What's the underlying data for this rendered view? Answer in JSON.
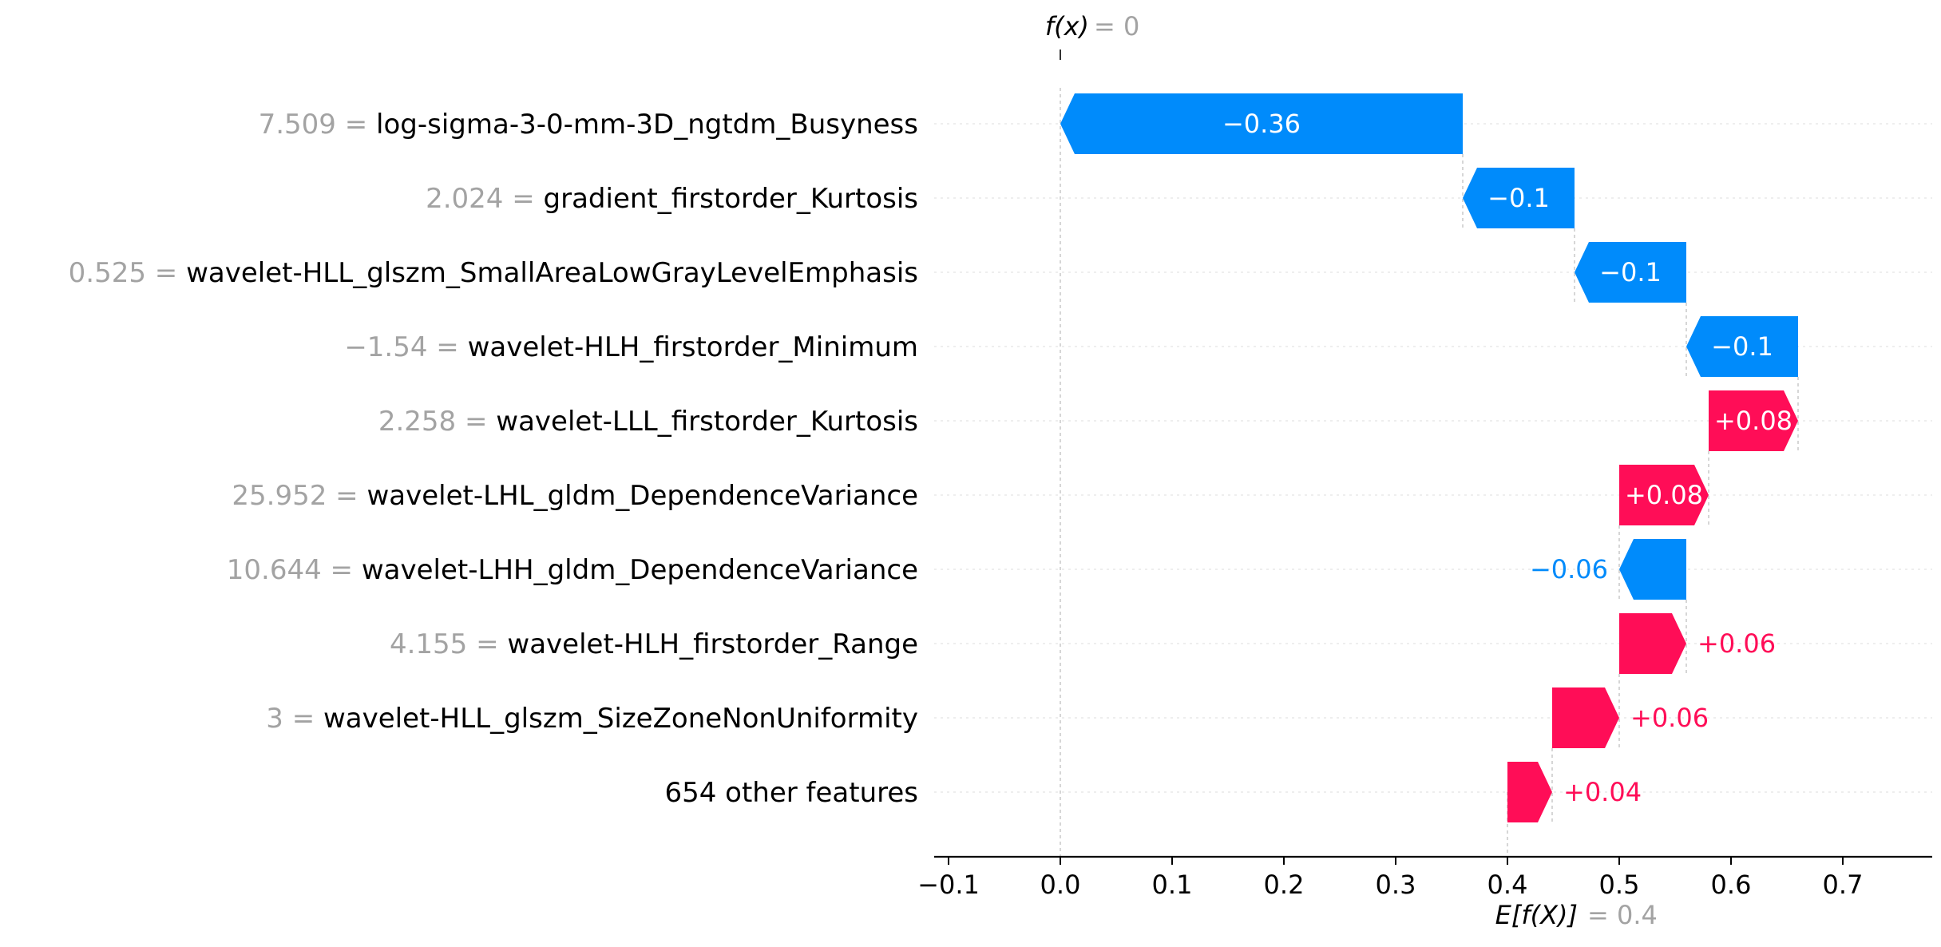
{
  "chart_data": {
    "type": "bar",
    "xlim": [
      -0.11,
      0.78
    ],
    "x_ticks": [
      "−0.1",
      "0.0",
      "0.1",
      "0.2",
      "0.3",
      "0.4",
      "0.5",
      "0.6",
      "0.7"
    ],
    "x_tick_values": [
      -0.1,
      0.0,
      0.1,
      0.2,
      0.3,
      0.4,
      0.5,
      0.6,
      0.7
    ],
    "fx_label": "f(x)",
    "fx_value": "= 0",
    "fx": 0.0,
    "ex_label": "E[f(X)]",
    "ex_value": "= 0.4",
    "base_value": 0.4,
    "colors": {
      "positive": "#ff0d57",
      "negative": "#008bfb",
      "value_text": "#a3a3a3"
    },
    "features": [
      {
        "value": "7.509 =",
        "name": "log-sigma-3-0-mm-3D_ngtdm_Busyness",
        "contribution": -0.36,
        "label": "−0.36",
        "start": 0.36,
        "end": 0.0,
        "label_inside": true
      },
      {
        "value": "2.024 =",
        "name": "gradient_firstorder_Kurtosis",
        "contribution": -0.1,
        "label": "−0.1",
        "start": 0.46,
        "end": 0.36,
        "label_inside": true
      },
      {
        "value": "0.525 =",
        "name": "wavelet-HLL_glszm_SmallAreaLowGrayLevelEmphasis",
        "contribution": -0.1,
        "label": "−0.1",
        "start": 0.56,
        "end": 0.46,
        "label_inside": true
      },
      {
        "value": "−1.54 =",
        "name": "wavelet-HLH_firstorder_Minimum",
        "contribution": -0.1,
        "label": "−0.1",
        "start": 0.66,
        "end": 0.56,
        "label_inside": true
      },
      {
        "value": "2.258 =",
        "name": "wavelet-LLL_firstorder_Kurtosis",
        "contribution": 0.08,
        "label": "+0.08",
        "start": 0.58,
        "end": 0.66,
        "label_inside": true
      },
      {
        "value": "25.952 =",
        "name": "wavelet-LHL_gldm_DependenceVariance",
        "contribution": 0.08,
        "label": "+0.08",
        "start": 0.5,
        "end": 0.58,
        "label_inside": true
      },
      {
        "value": "10.644 =",
        "name": "wavelet-LHH_gldm_DependenceVariance",
        "contribution": -0.06,
        "label": "−0.06",
        "start": 0.56,
        "end": 0.5,
        "label_inside": false
      },
      {
        "value": "4.155 =",
        "name": "wavelet-HLH_firstorder_Range",
        "contribution": 0.06,
        "label": "+0.06",
        "start": 0.5,
        "end": 0.56,
        "label_inside": false
      },
      {
        "value": "3 =",
        "name": "wavelet-HLL_glszm_SizeZoneNonUniformity",
        "contribution": 0.06,
        "label": "+0.06",
        "start": 0.44,
        "end": 0.5,
        "label_inside": false
      },
      {
        "value": "",
        "name": "654 other features",
        "contribution": 0.04,
        "label": "+0.04",
        "start": 0.4,
        "end": 0.44,
        "label_inside": false
      }
    ]
  }
}
